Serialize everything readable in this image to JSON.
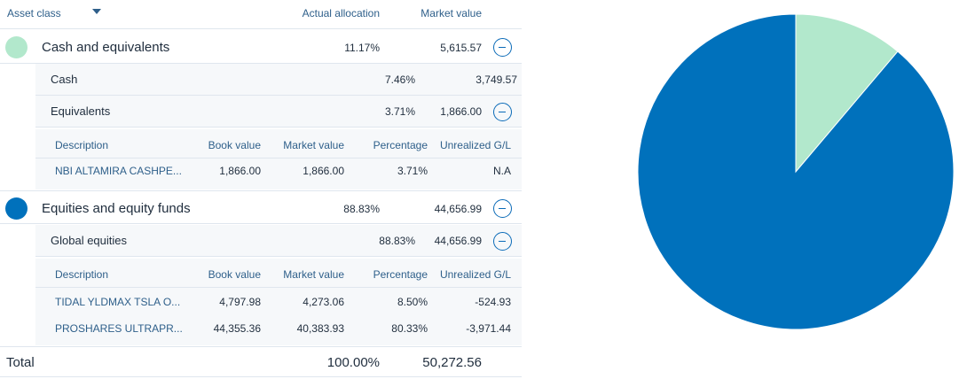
{
  "header": {
    "asset_class": "Asset class",
    "actual_allocation": "Actual allocation",
    "market_value": "Market value"
  },
  "classes": [
    {
      "name": "Cash and equivalents",
      "allocation": "11.17%",
      "market_value": "5,615.57",
      "color": "#b2e8cc",
      "subclasses": [
        {
          "name": "Cash",
          "allocation": "7.46%",
          "market_value": "3,749.57"
        },
        {
          "name": "Equivalents",
          "allocation": "3.71%",
          "market_value": "1,866.00",
          "details": {
            "columns": [
              "Description",
              "Book value",
              "Market value",
              "Percentage",
              "Unrealized G/L"
            ],
            "rows": [
              [
                "NBI ALTAMIRA CASHPE...",
                "1,866.00",
                "1,866.00",
                "3.71%",
                "N.A"
              ]
            ]
          }
        }
      ]
    },
    {
      "name": "Equities and equity funds",
      "allocation": "88.83%",
      "market_value": "44,656.99",
      "color": "#0071bc",
      "subclasses": [
        {
          "name": "Global equities",
          "allocation": "88.83%",
          "market_value": "44,656.99",
          "details": {
            "columns": [
              "Description",
              "Book value",
              "Market value",
              "Percentage",
              "Unrealized G/L"
            ],
            "rows": [
              [
                "TIDAL YLDMAX TSLA O...",
                "4,797.98",
                "4,273.06",
                "8.50%",
                "-524.93"
              ],
              [
                "PROSHARES ULTRAPR...",
                "44,355.36",
                "40,383.93",
                "80.33%",
                "-3,971.44"
              ]
            ]
          }
        }
      ]
    }
  ],
  "total": {
    "label": "Total",
    "allocation": "100.00%",
    "market_value": "50,272.56"
  },
  "chart_data": {
    "type": "pie",
    "slices": [
      {
        "value": 11.17,
        "color": "#b2e8cc"
      },
      {
        "value": 88.83,
        "color": "#0071bc"
      }
    ]
  }
}
